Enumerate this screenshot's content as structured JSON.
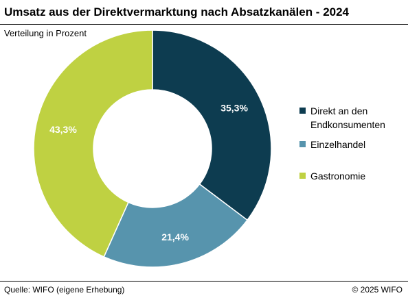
{
  "title": "Umsatz aus der Direktvermarktung nach Absatzkanälen - 2024",
  "subtitle": "Verteilung in Prozent",
  "source": "Quelle: WIFO (eigene Erhebung)",
  "copyright": "© 2025 WIFO",
  "colors": {
    "background": "#ffffff",
    "label_text": "#ffffff"
  },
  "chart_data": {
    "type": "pie",
    "variant": "donut",
    "title": "Umsatz aus der Direktvermarktung nach Absatzkanälen - 2024",
    "subtitle": "Verteilung in Prozent",
    "unit": "%",
    "legend_position": "right",
    "categories": [
      "Direkt an den Endkonsumenten",
      "Einzelhandel",
      "Gastronomie"
    ],
    "values": [
      35.3,
      21.4,
      43.3
    ],
    "labels": [
      "35,3%",
      "21,4%",
      "43,3%"
    ],
    "colors": [
      "#0d3c50",
      "#5794ad",
      "#bfd142"
    ]
  },
  "legend": [
    {
      "label": "Direkt an den Endkonsumenten",
      "color": "#0d3c50"
    },
    {
      "label": "Einzelhandel",
      "color": "#5794ad"
    },
    {
      "label": "Gastronomie",
      "color": "#bfd142"
    }
  ]
}
